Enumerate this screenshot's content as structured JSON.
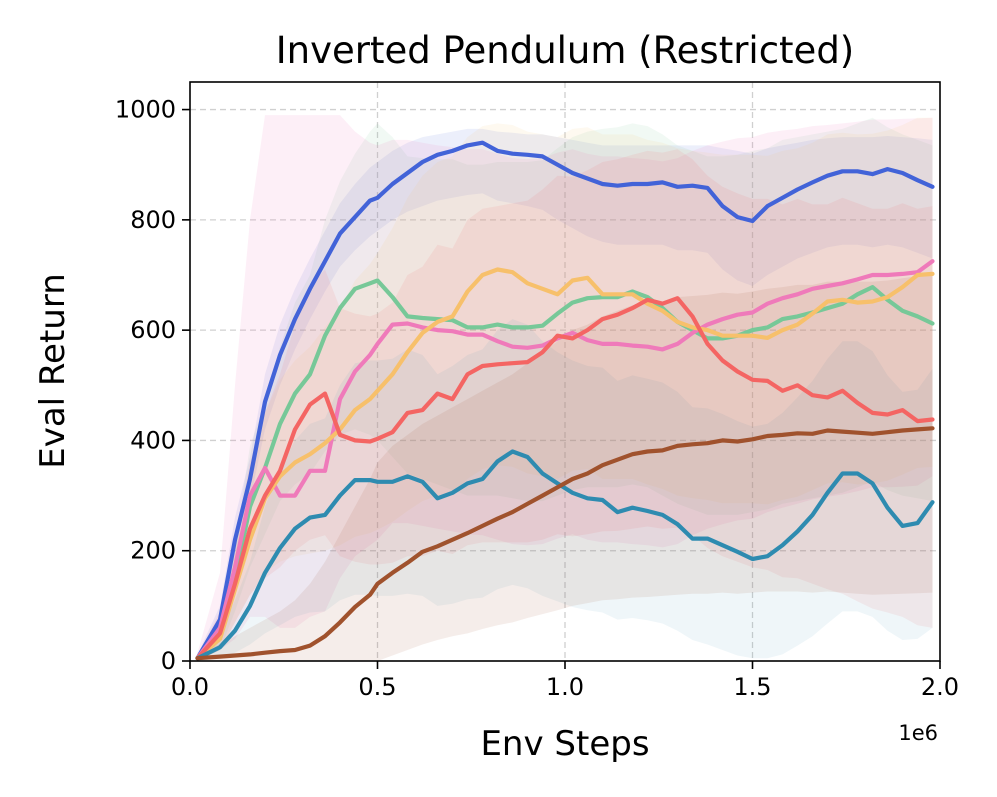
{
  "chart_data": {
    "type": "line",
    "title": "Inverted Pendulum (Restricted)",
    "xlabel": "Env Steps",
    "ylabel": "Eval Return",
    "x_offset_label": "1e6",
    "xlim": [
      0,
      2.0
    ],
    "ylim": [
      0,
      1050
    ],
    "xticks": [
      0.0,
      0.5,
      1.0,
      1.5,
      2.0
    ],
    "xtick_labels": [
      "0.0",
      "0.5",
      "1.0",
      "1.5",
      "2.0"
    ],
    "yticks": [
      0,
      200,
      400,
      600,
      800,
      1000
    ],
    "ytick_labels": [
      "0",
      "200",
      "400",
      "600",
      "800",
      "1000"
    ],
    "grid": true,
    "x": [
      0.02,
      0.08,
      0.12,
      0.16,
      0.2,
      0.24,
      0.28,
      0.32,
      0.36,
      0.4,
      0.44,
      0.48,
      0.5,
      0.54,
      0.58,
      0.62,
      0.66,
      0.7,
      0.74,
      0.78,
      0.82,
      0.86,
      0.9,
      0.94,
      0.98,
      1.02,
      1.06,
      1.1,
      1.14,
      1.18,
      1.22,
      1.26,
      1.3,
      1.34,
      1.38,
      1.42,
      1.46,
      1.5,
      1.54,
      1.58,
      1.62,
      1.66,
      1.7,
      1.74,
      1.78,
      1.82,
      1.86,
      1.9,
      1.94,
      1.98
    ],
    "series": [
      {
        "color": "#4263d8",
        "band_alpha": 0.1,
        "values": [
          5,
          75,
          220,
          330,
          470,
          555,
          620,
          675,
          725,
          775,
          805,
          835,
          840,
          865,
          885,
          905,
          918,
          925,
          935,
          940,
          925,
          920,
          918,
          915,
          900,
          885,
          875,
          865,
          862,
          865,
          865,
          868,
          860,
          862,
          858,
          825,
          805,
          798,
          825,
          840,
          855,
          868,
          880,
          888,
          888,
          883,
          892,
          885,
          872,
          860
        ],
        "lower": [
          0,
          50,
          180,
          290,
          420,
          500,
          565,
          620,
          670,
          715,
          745,
          770,
          780,
          800,
          815,
          825,
          835,
          840,
          845,
          848,
          835,
          830,
          825,
          818,
          800,
          785,
          770,
          760,
          755,
          755,
          755,
          755,
          745,
          745,
          740,
          710,
          690,
          680,
          700,
          715,
          730,
          740,
          750,
          755,
          755,
          750,
          755,
          750,
          740,
          730
        ],
        "upper": [
          12,
          100,
          260,
          370,
          520,
          610,
          675,
          730,
          780,
          830,
          865,
          895,
          905,
          925,
          940,
          950,
          955,
          960,
          965,
          965,
          960,
          958,
          955,
          955,
          950,
          945,
          940,
          935,
          935,
          935,
          935,
          935,
          935,
          935,
          935,
          930,
          925,
          920,
          930,
          935,
          940,
          945,
          948,
          950,
          950,
          950,
          952,
          950,
          948,
          945
        ]
      },
      {
        "color": "#77c898",
        "band_alpha": 0.1,
        "values": [
          5,
          50,
          150,
          280,
          350,
          430,
          485,
          520,
          590,
          640,
          675,
          685,
          690,
          660,
          625,
          622,
          620,
          618,
          605,
          605,
          610,
          605,
          605,
          608,
          630,
          650,
          658,
          660,
          660,
          670,
          660,
          640,
          615,
          600,
          585,
          585,
          590,
          600,
          605,
          620,
          625,
          632,
          640,
          648,
          665,
          678,
          655,
          635,
          625,
          612
        ],
        "lower": [
          0,
          20,
          90,
          170,
          230,
          290,
          320,
          340,
          380,
          410,
          420,
          410,
          400,
          370,
          340,
          330,
          320,
          310,
          300,
          300,
          300,
          295,
          290,
          290,
          300,
          310,
          315,
          315,
          315,
          320,
          315,
          300,
          285,
          275,
          265,
          265,
          265,
          270,
          275,
          285,
          290,
          295,
          300,
          305,
          315,
          325,
          310,
          300,
          295,
          290
        ],
        "upper": [
          10,
          80,
          210,
          390,
          470,
          570,
          650,
          700,
          800,
          870,
          920,
          960,
          975,
          950,
          915,
          912,
          910,
          910,
          900,
          900,
          905,
          905,
          905,
          908,
          930,
          950,
          960,
          965,
          968,
          975,
          970,
          955,
          935,
          925,
          915,
          915,
          918,
          925,
          930,
          945,
          950,
          955,
          960,
          965,
          975,
          985,
          968,
          955,
          945,
          935
        ]
      },
      {
        "color": "#ef7aba",
        "band_alpha": 0.12,
        "values": [
          5,
          60,
          170,
          300,
          350,
          300,
          300,
          345,
          345,
          475,
          525,
          555,
          575,
          610,
          612,
          605,
          600,
          598,
          592,
          592,
          580,
          570,
          568,
          572,
          585,
          595,
          582,
          575,
          575,
          572,
          570,
          565,
          575,
          595,
          610,
          620,
          628,
          632,
          648,
          658,
          665,
          675,
          680,
          685,
          692,
          700,
          700,
          702,
          705,
          725
        ],
        "lower": [
          0,
          20,
          40,
          80,
          80,
          60,
          60,
          80,
          90,
          150,
          190,
          210,
          220,
          250,
          250,
          245,
          240,
          235,
          230,
          228,
          220,
          212,
          210,
          212,
          222,
          230,
          220,
          215,
          215,
          212,
          210,
          206,
          212,
          228,
          240,
          248,
          255,
          258,
          270,
          278,
          285,
          293,
          298,
          302,
          308,
          315,
          315,
          316,
          318,
          335
        ],
        "upper": [
          15,
          160,
          500,
          800,
          990,
          990,
          990,
          990,
          990,
          990,
          960,
          940,
          935,
          945,
          945,
          940,
          935,
          932,
          928,
          928,
          920,
          912,
          910,
          912,
          922,
          928,
          920,
          915,
          915,
          912,
          910,
          906,
          912,
          925,
          935,
          942,
          948,
          950,
          958,
          962,
          965,
          970,
          972,
          975,
          978,
          982,
          982,
          983,
          984,
          985
        ]
      },
      {
        "color": "#f7c06b",
        "band_alpha": 0.1,
        "values": [
          5,
          40,
          130,
          220,
          295,
          335,
          360,
          375,
          395,
          420,
          455,
          475,
          490,
          520,
          560,
          595,
          615,
          625,
          670,
          700,
          710,
          705,
          685,
          675,
          665,
          690,
          695,
          665,
          665,
          665,
          648,
          635,
          615,
          605,
          600,
          590,
          590,
          590,
          586,
          600,
          610,
          630,
          652,
          655,
          650,
          652,
          660,
          678,
          700,
          702
        ],
        "lower": [
          0,
          20,
          70,
          120,
          160,
          180,
          190,
          195,
          200,
          210,
          225,
          232,
          238,
          252,
          272,
          290,
          300,
          305,
          330,
          348,
          355,
          352,
          340,
          335,
          330,
          345,
          348,
          330,
          330,
          330,
          320,
          312,
          300,
          295,
          292,
          286,
          286,
          286,
          284,
          292,
          298,
          310,
          322,
          324,
          320,
          322,
          327,
          338,
          350,
          352
        ],
        "upper": [
          10,
          70,
          200,
          340,
          450,
          510,
          545,
          570,
          605,
          640,
          690,
          720,
          740,
          785,
          840,
          880,
          905,
          915,
          950,
          970,
          975,
          972,
          960,
          955,
          950,
          965,
          968,
          955,
          955,
          955,
          945,
          940,
          930,
          925,
          922,
          918,
          918,
          918,
          916,
          925,
          930,
          940,
          955,
          958,
          955,
          956,
          962,
          972,
          985,
          985
        ]
      },
      {
        "color": "#f46563",
        "band_alpha": 0.1,
        "values": [
          5,
          50,
          140,
          240,
          300,
          345,
          420,
          465,
          485,
          410,
          400,
          398,
          403,
          415,
          450,
          455,
          485,
          475,
          520,
          535,
          538,
          540,
          542,
          560,
          590,
          585,
          600,
          620,
          628,
          640,
          655,
          648,
          658,
          625,
          575,
          545,
          525,
          510,
          508,
          490,
          500,
          482,
          478,
          490,
          468,
          450,
          447,
          455,
          435,
          438
        ],
        "lower": [
          0,
          20,
          70,
          120,
          150,
          170,
          200,
          220,
          228,
          190,
          180,
          175,
          175,
          178,
          190,
          190,
          200,
          194,
          210,
          215,
          215,
          215,
          215,
          220,
          230,
          226,
          230,
          235,
          236,
          240,
          244,
          240,
          242,
          228,
          205,
          190,
          180,
          170,
          165,
          152,
          150,
          140,
          130,
          122,
          108,
          95,
          88,
          80,
          65,
          60
        ],
        "upper": [
          10,
          90,
          220,
          360,
          450,
          520,
          610,
          680,
          710,
          640,
          630,
          625,
          630,
          650,
          700,
          715,
          755,
          748,
          800,
          820,
          825,
          830,
          835,
          855,
          880,
          878,
          890,
          905,
          910,
          918,
          925,
          922,
          928,
          910,
          880,
          860,
          848,
          838,
          838,
          828,
          838,
          828,
          828,
          840,
          830,
          820,
          820,
          830,
          820,
          825
        ]
      },
      {
        "color": "#2e8bb0",
        "band_alpha": 0.08,
        "values": [
          5,
          25,
          55,
          100,
          160,
          205,
          240,
          260,
          265,
          300,
          328,
          328,
          325,
          325,
          335,
          325,
          295,
          305,
          322,
          330,
          362,
          380,
          370,
          340,
          322,
          305,
          295,
          292,
          270,
          278,
          272,
          265,
          248,
          222,
          222,
          210,
          198,
          185,
          190,
          210,
          235,
          265,
          305,
          340,
          340,
          322,
          278,
          245,
          250,
          288
        ],
        "lower": [
          0,
          5,
          15,
          30,
          50,
          65,
          80,
          88,
          90,
          110,
          120,
          120,
          118,
          118,
          122,
          118,
          100,
          104,
          112,
          115,
          130,
          138,
          132,
          118,
          108,
          98,
          92,
          88,
          75,
          78,
          74,
          68,
          55,
          38,
          30,
          20,
          10,
          5,
          5,
          12,
          28,
          45,
          68,
          90,
          90,
          80,
          55,
          38,
          40,
          60
        ],
        "upper": [
          12,
          50,
          110,
          180,
          280,
          350,
          400,
          430,
          440,
          500,
          540,
          545,
          545,
          548,
          565,
          555,
          520,
          535,
          555,
          565,
          600,
          620,
          610,
          580,
          560,
          545,
          535,
          532,
          508,
          518,
          512,
          505,
          488,
          460,
          458,
          448,
          435,
          425,
          430,
          450,
          478,
          508,
          548,
          580,
          580,
          562,
          518,
          488,
          492,
          530
        ]
      },
      {
        "color": "#a0522d",
        "band_alpha": 0.1,
        "values": [
          5,
          8,
          10,
          12,
          15,
          18,
          20,
          28,
          45,
          70,
          98,
          120,
          140,
          160,
          178,
          198,
          208,
          220,
          232,
          245,
          258,
          270,
          285,
          300,
          315,
          330,
          340,
          355,
          365,
          375,
          380,
          382,
          390,
          393,
          395,
          400,
          398,
          402,
          408,
          410,
          413,
          412,
          418,
          416,
          414,
          412,
          415,
          418,
          420,
          422
        ],
        "lower": [
          0,
          0,
          0,
          0,
          0,
          0,
          0,
          0,
          0,
          0,
          0,
          0,
          0,
          10,
          20,
          30,
          38,
          45,
          50,
          58,
          65,
          70,
          78,
          85,
          92,
          100,
          105,
          110,
          112,
          115,
          116,
          118,
          120,
          122,
          122,
          124,
          122,
          124,
          126,
          126,
          126,
          124,
          126,
          124,
          122,
          120,
          121,
          122,
          123,
          124
        ],
        "upper": [
          15,
          30,
          45,
          60,
          75,
          90,
          110,
          140,
          180,
          230,
          280,
          330,
          360,
          390,
          410,
          430,
          445,
          460,
          475,
          490,
          505,
          520,
          540,
          560,
          580,
          600,
          610,
          625,
          635,
          645,
          650,
          652,
          660,
          662,
          664,
          668,
          666,
          670,
          675,
          678,
          682,
          682,
          688,
          688,
          688,
          688,
          690,
          694,
          698,
          702
        ]
      }
    ]
  }
}
